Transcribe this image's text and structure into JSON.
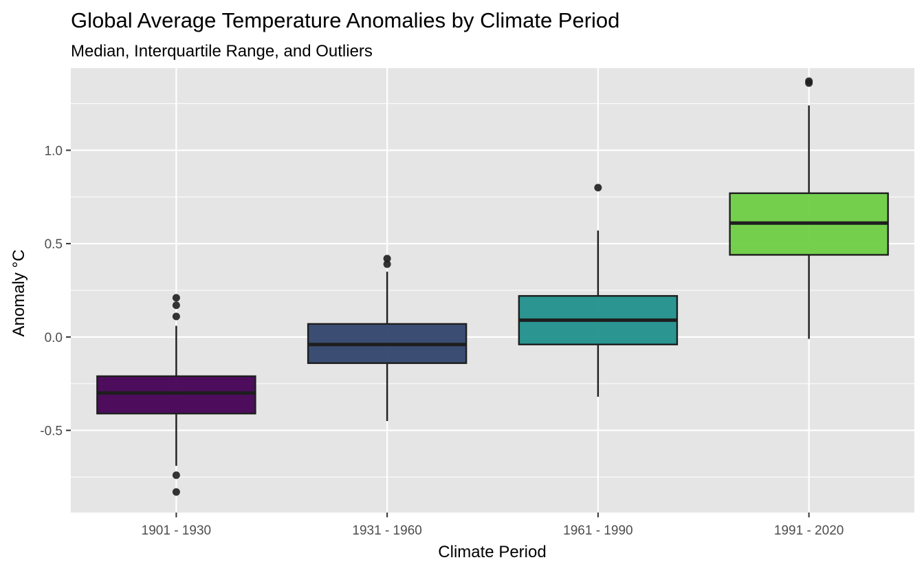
{
  "chart_data": {
    "type": "box",
    "title": "Global Average Temperature Anomalies by Climate Period",
    "subtitle": "Median, Interquartile Range, and Outliers",
    "xlabel": "Climate Period",
    "ylabel": "Anomaly °C",
    "categories": [
      "1901 - 1930",
      "1931 - 1960",
      "1961 - 1990",
      "1991 - 2020"
    ],
    "ylim": [
      -0.94,
      1.44
    ],
    "yticks": [
      -0.5,
      0.0,
      0.5,
      1.0
    ],
    "ytick_labels": [
      "-0.5",
      "0.0",
      "0.5",
      "1.0"
    ],
    "grid": true,
    "legend": "none",
    "boxes": [
      {
        "category": "1901 - 1930",
        "whisker_low": -0.69,
        "q1": -0.41,
        "median": -0.3,
        "q3": -0.21,
        "whisker_high": 0.06,
        "outliers": [
          0.21,
          0.17,
          0.11,
          -0.74,
          -0.83
        ],
        "color": "#440154"
      },
      {
        "category": "1931 - 1960",
        "whisker_low": -0.45,
        "q1": -0.14,
        "median": -0.04,
        "q3": 0.07,
        "whisker_high": 0.35,
        "outliers": [
          0.42,
          0.39
        ],
        "color": "#31446b"
      },
      {
        "category": "1961 - 1990",
        "whisker_low": -0.32,
        "q1": -0.04,
        "median": 0.09,
        "q3": 0.22,
        "whisker_high": 0.57,
        "outliers": [
          0.8
        ],
        "color": "#21908c"
      },
      {
        "category": "1991 - 2020",
        "whisker_low": -0.01,
        "q1": 0.44,
        "median": 0.61,
        "q3": 0.77,
        "whisker_high": 1.24,
        "outliers": [
          1.37,
          1.36
        ],
        "color": "#6ece44"
      }
    ]
  }
}
